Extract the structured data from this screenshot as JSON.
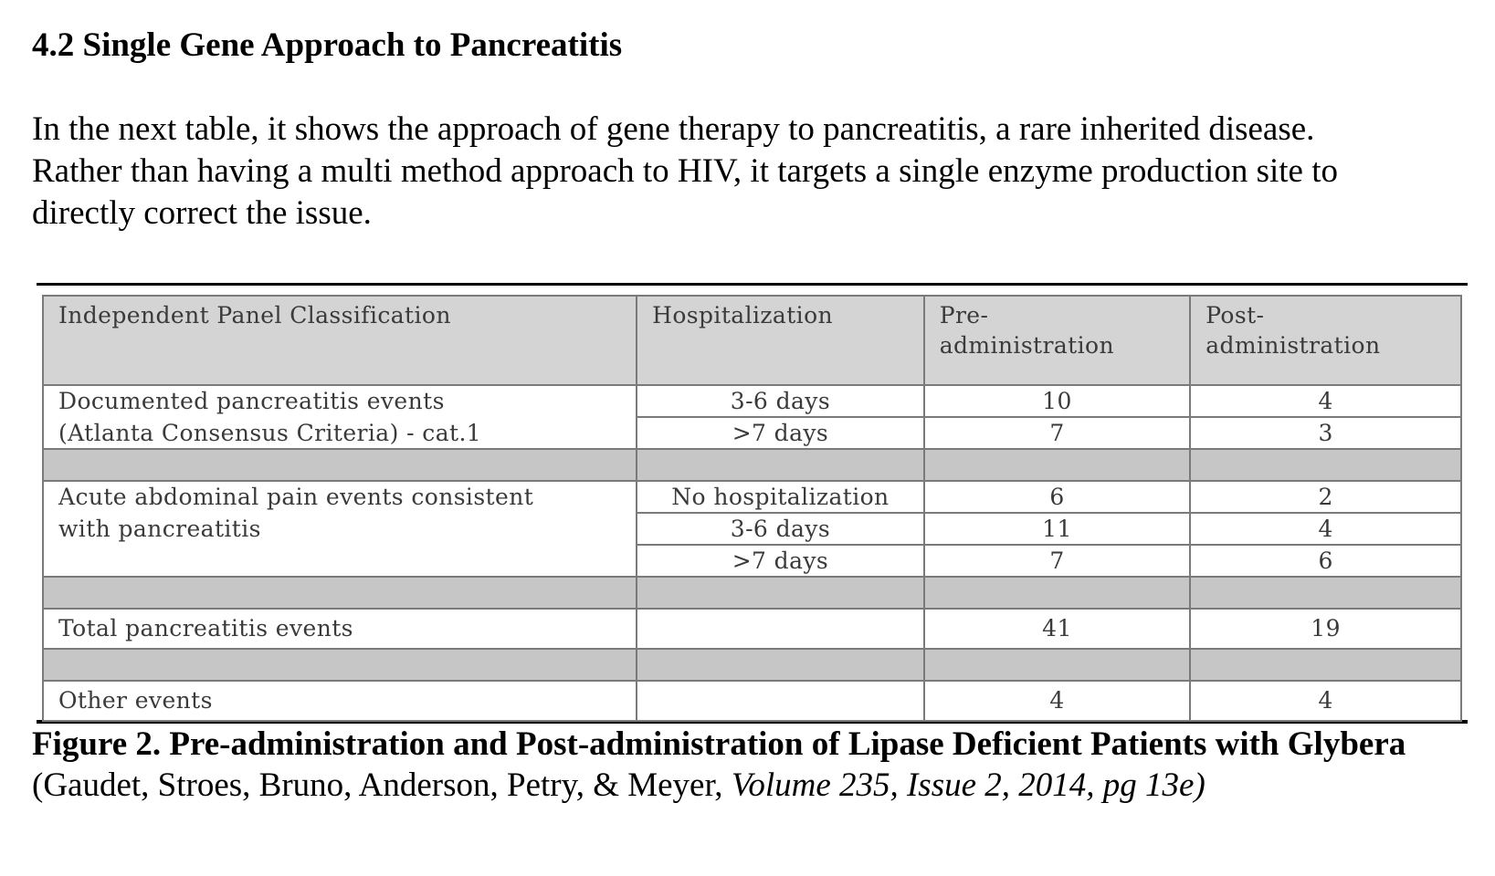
{
  "section": {
    "heading": "4.2 Single Gene Approach to Pancreatitis",
    "intro": "In the next table, it shows the approach of gene therapy to pancreatitis, a rare inherited disease. Rather than having a multi method approach to HIV, it targets a single enzyme production site to directly correct the issue."
  },
  "table": {
    "headers": {
      "classification": "Independent Panel Classification",
      "hospitalization": "Hospitalization",
      "pre_line1": "Pre-",
      "pre_line2": "administration",
      "post_line1": "Post-",
      "post_line2": "administration"
    },
    "documented": {
      "label_line1": "Documented pancreatitis events",
      "label_line2": "(Atlanta Consensus Criteria) - cat.1",
      "rows": [
        {
          "hospitalization": "3-6 days",
          "pre": "10",
          "post": "4"
        },
        {
          "hospitalization": ">7 days",
          "pre": "7",
          "post": "3"
        }
      ]
    },
    "acute": {
      "label_line1": "Acute abdominal pain events consistent",
      "label_line2": "with pancreatitis",
      "rows": [
        {
          "hospitalization": "No hospitalization",
          "pre": "6",
          "post": "2"
        },
        {
          "hospitalization": "3-6 days",
          "pre": "11",
          "post": "4"
        },
        {
          "hospitalization": ">7 days",
          "pre": "7",
          "post": "6"
        }
      ]
    },
    "total": {
      "label": "Total pancreatitis events",
      "pre": "41",
      "post": "19"
    },
    "other": {
      "label": "Other events",
      "pre": "4",
      "post": "4"
    }
  },
  "caption": {
    "bold_text": "Figure 2. Pre-administration and Post-administration of Lipase Deficient Patients with Glybera",
    "open_paren": " (",
    "authors": "Gaudet, Stroes, Bruno, Anderson, Petry, & Meyer, ",
    "citation": "Volume 235, Issue 2, 2014, pg 13e)"
  }
}
